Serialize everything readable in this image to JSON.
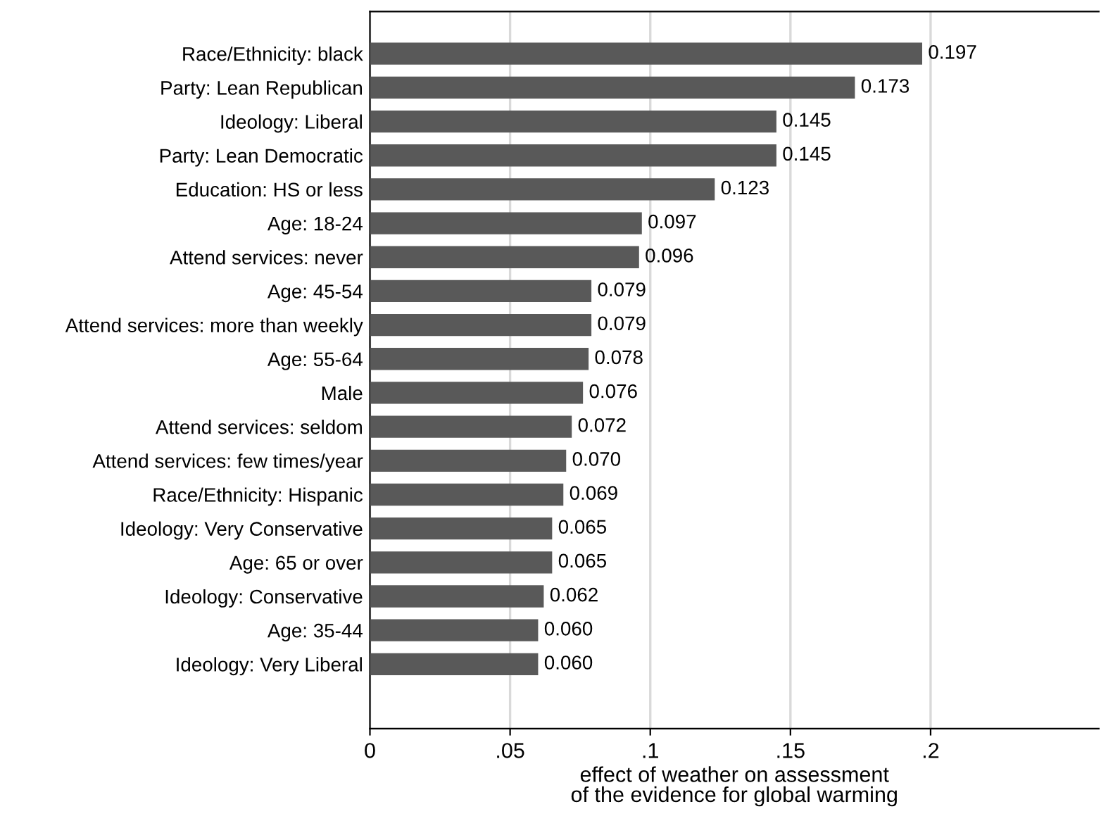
{
  "chart_data": {
    "type": "bar",
    "orientation": "horizontal",
    "xlabel": "effect of weather on assessment\nof the evidence for global warming",
    "categories": [
      "Race/Ethnicity: black",
      "Party: Lean Republican",
      "Ideology: Liberal",
      "Party: Lean Democratic",
      "Education: HS or less",
      "Age: 18-24",
      "Attend services: never",
      "Age: 45-54",
      "Attend services: more than weekly",
      "Age: 55-64",
      "Male",
      "Attend services: seldom",
      "Attend services: few times/year",
      "Race/Ethnicity: Hispanic",
      "Ideology: Very Conservative",
      "Age: 65 or over",
      "Ideology: Conservative",
      "Age: 35-44",
      "Ideology: Very Liberal"
    ],
    "values": [
      0.197,
      0.173,
      0.145,
      0.145,
      0.123,
      0.097,
      0.096,
      0.079,
      0.079,
      0.078,
      0.076,
      0.072,
      0.07,
      0.069,
      0.065,
      0.065,
      0.062,
      0.06,
      0.06
    ],
    "value_labels": [
      "0.197",
      "0.173",
      "0.145",
      "0.145",
      "0.123",
      "0.097",
      "0.096",
      "0.079",
      "0.079",
      "0.078",
      "0.076",
      "0.072",
      "0.070",
      "0.069",
      "0.065",
      "0.065",
      "0.062",
      "0.060",
      "0.060"
    ],
    "color": "#595959",
    "xlim": [
      0,
      0.26
    ],
    "xticks": [
      0,
      {
        "value": 0.05,
        "label": ".05"
      },
      {
        "value": 0.1,
        "label": ".1"
      },
      {
        "value": 0.15,
        "label": ".15"
      },
      {
        "value": 0.2,
        "label": ".2"
      }
    ],
    "grid": "x",
    "legend": false
  }
}
